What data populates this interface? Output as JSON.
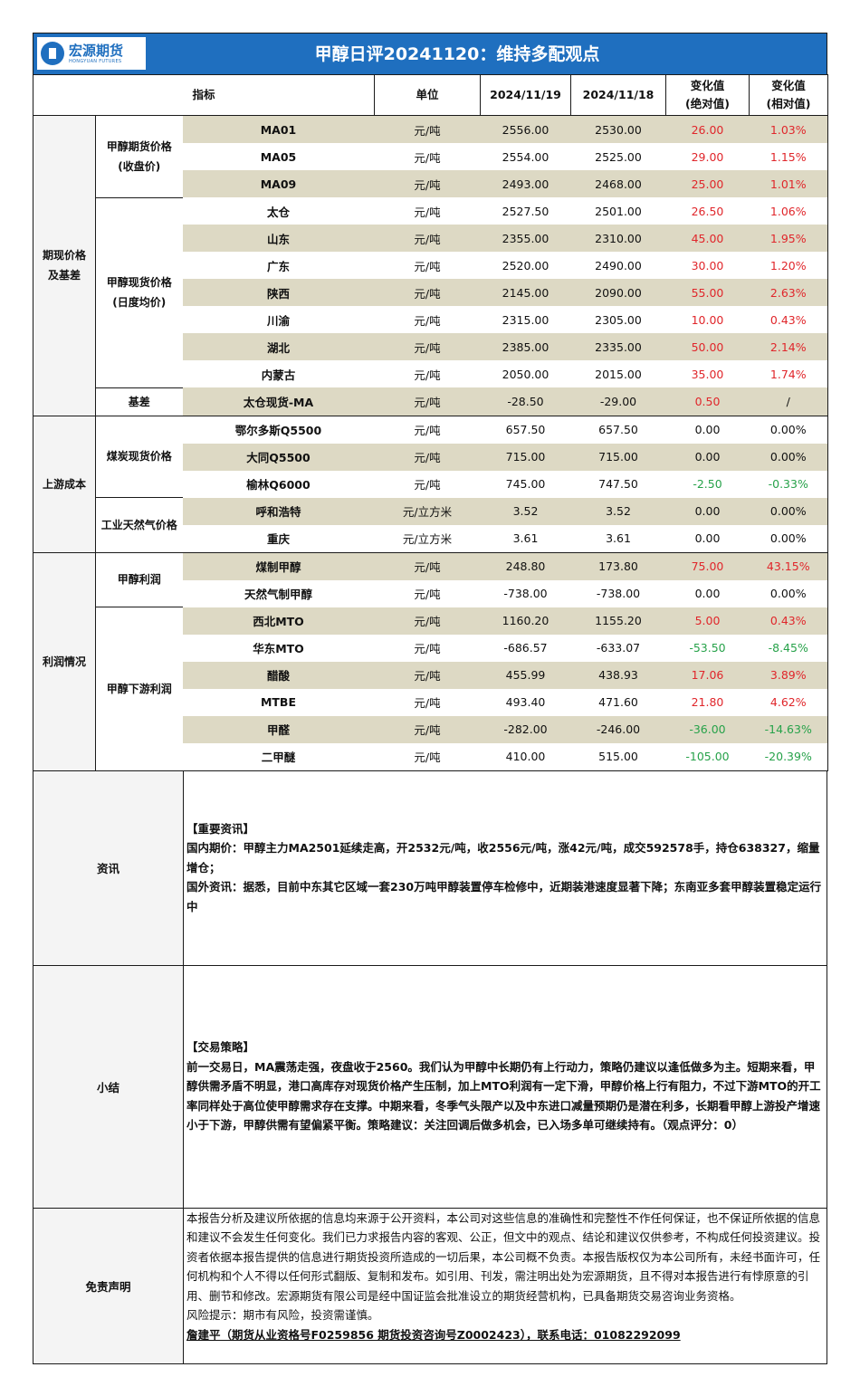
{
  "header": {
    "logo_cn": "宏源期货",
    "logo_en": "HONGYUAN FUTURES",
    "title": "甲醇日评20241120：维持多配观点"
  },
  "columns": {
    "indicator": "指标",
    "unit": "单位",
    "date1": "2024/11/19",
    "date2": "2024/11/18",
    "abs_change": [
      "变化值",
      "(绝对值)"
    ],
    "rel_change": [
      "变化值",
      "(相对值)"
    ]
  },
  "colors": {
    "up": "#e0262b",
    "down": "#27a24a",
    "header": "#1f6fbf",
    "row_shade": "#ddd9c4"
  },
  "groups": [
    {
      "label": "期现价格\n及基差",
      "subgroups": [
        {
          "label": "甲醇期货价格\n(收盘价)",
          "rows": [
            {
              "name": "MA01",
              "unit": "元/吨",
              "v1": "2556.00",
              "v2": "2530.00",
              "abs": "26.00",
              "rel": "1.03%",
              "trend": "up"
            },
            {
              "name": "MA05",
              "unit": "元/吨",
              "v1": "2554.00",
              "v2": "2525.00",
              "abs": "29.00",
              "rel": "1.15%",
              "trend": "up"
            },
            {
              "name": "MA09",
              "unit": "元/吨",
              "v1": "2493.00",
              "v2": "2468.00",
              "abs": "25.00",
              "rel": "1.01%",
              "trend": "up"
            }
          ]
        },
        {
          "label": "甲醇现货价格\n(日度均价)",
          "rows": [
            {
              "name": "太仓",
              "unit": "元/吨",
              "v1": "2527.50",
              "v2": "2501.00",
              "abs": "26.50",
              "rel": "1.06%",
              "trend": "up"
            },
            {
              "name": "山东",
              "unit": "元/吨",
              "v1": "2355.00",
              "v2": "2310.00",
              "abs": "45.00",
              "rel": "1.95%",
              "trend": "up"
            },
            {
              "name": "广东",
              "unit": "元/吨",
              "v1": "2520.00",
              "v2": "2490.00",
              "abs": "30.00",
              "rel": "1.20%",
              "trend": "up"
            },
            {
              "name": "陕西",
              "unit": "元/吨",
              "v1": "2145.00",
              "v2": "2090.00",
              "abs": "55.00",
              "rel": "2.63%",
              "trend": "up"
            },
            {
              "name": "川渝",
              "unit": "元/吨",
              "v1": "2315.00",
              "v2": "2305.00",
              "abs": "10.00",
              "rel": "0.43%",
              "trend": "up"
            },
            {
              "name": "湖北",
              "unit": "元/吨",
              "v1": "2385.00",
              "v2": "2335.00",
              "abs": "50.00",
              "rel": "2.14%",
              "trend": "up"
            },
            {
              "name": "内蒙古",
              "unit": "元/吨",
              "v1": "2050.00",
              "v2": "2015.00",
              "abs": "35.00",
              "rel": "1.74%",
              "trend": "up"
            }
          ]
        },
        {
          "label": "基差",
          "rows": [
            {
              "name": "太仓现货-MA",
              "unit": "元/吨",
              "v1": "-28.50",
              "v2": "-29.00",
              "abs": "0.50",
              "rel": "/",
              "trend": "up",
              "rel_trend": "flat"
            }
          ]
        }
      ]
    },
    {
      "label": "上游成本",
      "subgroups": [
        {
          "label": "煤炭现货价格",
          "rows": [
            {
              "name": "鄂尔多斯Q5500",
              "unit": "元/吨",
              "v1": "657.50",
              "v2": "657.50",
              "abs": "0.00",
              "rel": "0.00%",
              "trend": "flat"
            },
            {
              "name": "大同Q5500",
              "unit": "元/吨",
              "v1": "715.00",
              "v2": "715.00",
              "abs": "0.00",
              "rel": "0.00%",
              "trend": "flat"
            },
            {
              "name": "榆林Q6000",
              "unit": "元/吨",
              "v1": "745.00",
              "v2": "747.50",
              "abs": "-2.50",
              "rel": "-0.33%",
              "trend": "down"
            }
          ]
        },
        {
          "label": "工业天然气价格",
          "rows": [
            {
              "name": "呼和浩特",
              "unit": "元/立方米",
              "v1": "3.52",
              "v2": "3.52",
              "abs": "0.00",
              "rel": "0.00%",
              "trend": "flat"
            },
            {
              "name": "重庆",
              "unit": "元/立方米",
              "v1": "3.61",
              "v2": "3.61",
              "abs": "0.00",
              "rel": "0.00%",
              "trend": "flat"
            }
          ]
        }
      ]
    },
    {
      "label": "利润情况",
      "subgroups": [
        {
          "label": "甲醇利润",
          "rows": [
            {
              "name": "煤制甲醇",
              "unit": "元/吨",
              "v1": "248.80",
              "v2": "173.80",
              "abs": "75.00",
              "rel": "43.15%",
              "trend": "up"
            },
            {
              "name": "天然气制甲醇",
              "unit": "元/吨",
              "v1": "-738.00",
              "v2": "-738.00",
              "abs": "0.00",
              "rel": "0.00%",
              "trend": "flat"
            }
          ]
        },
        {
          "label": "甲醇下游利润",
          "rows": [
            {
              "name": "西北MTO",
              "unit": "元/吨",
              "v1": "1160.20",
              "v2": "1155.20",
              "abs": "5.00",
              "rel": "0.43%",
              "trend": "up"
            },
            {
              "name": "华东MTO",
              "unit": "元/吨",
              "v1": "-686.57",
              "v2": "-633.07",
              "abs": "-53.50",
              "rel": "-8.45%",
              "trend": "down"
            },
            {
              "name": "醋酸",
              "unit": "元/吨",
              "v1": "455.99",
              "v2": "438.93",
              "abs": "17.06",
              "rel": "3.89%",
              "trend": "up"
            },
            {
              "name": "MTBE",
              "unit": "元/吨",
              "v1": "493.40",
              "v2": "471.60",
              "abs": "21.80",
              "rel": "4.62%",
              "trend": "up"
            },
            {
              "name": "甲醛",
              "unit": "元/吨",
              "v1": "-282.00",
              "v2": "-246.00",
              "abs": "-36.00",
              "rel": "-14.63%",
              "trend": "down"
            },
            {
              "name": "二甲醚",
              "unit": "元/吨",
              "v1": "410.00",
              "v2": "515.00",
              "abs": "-105.00",
              "rel": "-20.39%",
              "trend": "down"
            }
          ]
        }
      ]
    }
  ],
  "news": {
    "label": "资讯",
    "lines": [
      "【重要资讯】",
      "国内期价：甲醇主力MA2501延续走高，开2532元/吨，收2556元/吨，涨42元/吨，成交592578手，持仓638327，缩量增仓；",
      "国外资讯：据悉，目前中东其它区域一套230万吨甲醇装置停车检修中，近期装港速度显著下降；东南亚多套甲醇装置稳定运行中"
    ]
  },
  "summary": {
    "label": "小结",
    "lines": [
      "【交易策略】",
      "前一交易日，MA震荡走强，夜盘收于2560。我们认为甲醇中长期仍有上行动力，策略仍建议以逢低做多为主。短期来看，甲醇供需矛盾不明显，港口高库存对现货价格产生压制，加上MTO利润有一定下滑，甲醇价格上行有阻力，不过下游MTO的开工率同样处于高位使甲醇需求存在支撑。中期来看，冬季气头限产以及中东进口减量预期仍是潜在利多，长期看甲醇上游投产增速小于下游，甲醇供需有望偏紧平衡。策略建议：关注回调后做多机会，已入场多单可继续持有。（观点评分：0）"
    ]
  },
  "disclaimer": {
    "label": "免责声明",
    "text": "本报告分析及建议所依据的信息均来源于公开资料，本公司对这些信息的准确性和完整性不作任何保证，也不保证所依据的信息和建议不会发生任何变化。我们已力求报告内容的客观、公正，但文中的观点、结论和建议仅供参考，不构成任何投资建议。投资者依据本报告提供的信息进行期货投资所造成的一切后果，本公司概不负责。本报告版权仅为本公司所有，未经书面许可，任何机构和个人不得以任何形式翻版、复制和发布。如引用、刊发，需注明出处为宏源期货，且不得对本报告进行有悖原意的引用、删节和修改。宏源期货有限公司是经中国证监会批准设立的期货经营机构，已具备期货交易咨询业务资格。",
    "risk": "风险提示：期市有风险，投资需谨慎。",
    "contact": "詹建平（期货从业资格号F0259856 期货投资咨询号Z0002423），联系电话：01082292099"
  }
}
